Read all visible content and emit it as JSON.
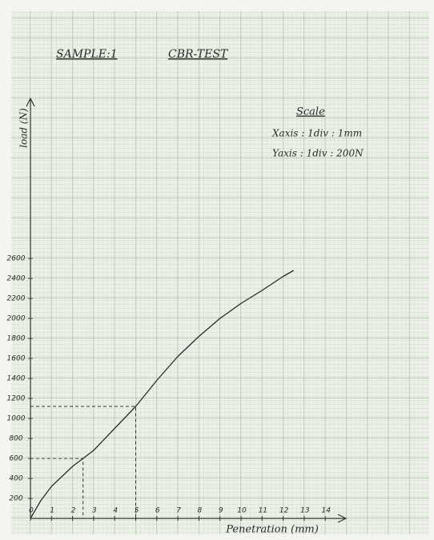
{
  "chart_data": {
    "type": "line",
    "title": "CBR-TEST",
    "subtitle": "SAMPLE:1",
    "scale_title": "Scale",
    "scale_lines": [
      "Xaxis : 1div : 1mm",
      "Yaxis : 1div : 200N"
    ],
    "x_label": "Penetration (mm)",
    "y_label": "load (N)",
    "x": [
      0,
      0.5,
      1,
      1.5,
      2,
      2.5,
      3,
      4,
      5,
      6,
      7,
      8,
      9,
      10,
      11,
      12,
      12.5
    ],
    "series": [
      {
        "color": "#2a2a2a",
        "values": [
          0,
          180,
          320,
          420,
          520,
          600,
          680,
          900,
          1120,
          1380,
          1620,
          1820,
          2000,
          2150,
          2280,
          2420,
          2480
        ]
      }
    ],
    "reference_lines": [
      {
        "x": 2.5,
        "y": 600
      },
      {
        "x": 5,
        "y": 1120
      }
    ],
    "xlim": [
      0,
      15
    ],
    "ylim": [
      0,
      4200
    ],
    "xticks": [
      0,
      1,
      2,
      3,
      4,
      5,
      6,
      7,
      8,
      9,
      10,
      11,
      12,
      13,
      14
    ],
    "yticks": [
      200,
      400,
      600,
      800,
      1000,
      1200,
      1400,
      1600,
      1800,
      2000,
      2200,
      2400,
      2600
    ],
    "grid": true
  }
}
